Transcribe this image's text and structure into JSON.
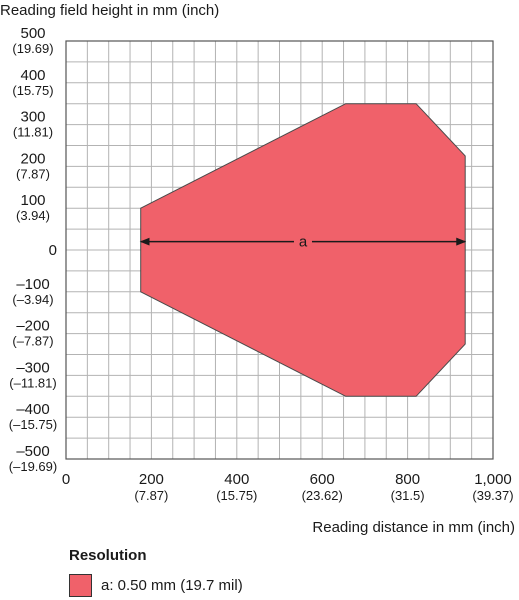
{
  "colors": {
    "region_fill": "#f0616a",
    "region_stroke": "#4a4a4a",
    "grid": "#b3b3b3",
    "axis": "#555555"
  },
  "chart_data": {
    "type": "area",
    "ylabel": "Reading field height in mm (inch)",
    "xlabel": "Reading distance in mm (inch)",
    "xlim": [
      0,
      1000
    ],
    "ylim": [
      -500,
      500
    ],
    "x_ticks": [
      {
        "value": 0,
        "label": "0",
        "sub": ""
      },
      {
        "value": 200,
        "label": "200",
        "sub": "(7.87)"
      },
      {
        "value": 400,
        "label": "400",
        "sub": "(15.75)"
      },
      {
        "value": 600,
        "label": "600",
        "sub": "(23.62)"
      },
      {
        "value": 800,
        "label": "800",
        "sub": "(31.5)"
      },
      {
        "value": 1000,
        "label": "1,000",
        "sub": "(39.37)"
      }
    ],
    "y_ticks": [
      {
        "value": 500,
        "label": "500",
        "sub": "(19.69)"
      },
      {
        "value": 400,
        "label": "400",
        "sub": "(15.75)"
      },
      {
        "value": 300,
        "label": "300",
        "sub": "(11.81)"
      },
      {
        "value": 200,
        "label": "200",
        "sub": "(7.87)"
      },
      {
        "value": 100,
        "label": "100",
        "sub": "(3.94)"
      },
      {
        "value": 0,
        "label": "0",
        "sub": ""
      },
      {
        "value": -100,
        "label": "–100",
        "sub": "(–3.94)"
      },
      {
        "value": -200,
        "label": "–200",
        "sub": "(–7.87)"
      },
      {
        "value": -300,
        "label": "–300",
        "sub": "(–11.81)"
      },
      {
        "value": -400,
        "label": "–400",
        "sub": "(–15.75)"
      },
      {
        "value": -500,
        "label": "–500",
        "sub": "(–19.69)"
      }
    ],
    "grid": true,
    "grid_step_x": 50,
    "grid_step_y": 50,
    "series": [
      {
        "name": "a: 0.50 mm (19.7 mil)",
        "polygon": [
          [
            175,
            100
          ],
          [
            655,
            350
          ],
          [
            820,
            350
          ],
          [
            935,
            225
          ],
          [
            935,
            -225
          ],
          [
            820,
            -350
          ],
          [
            655,
            -350
          ],
          [
            175,
            -100
          ]
        ]
      }
    ],
    "annotations": [
      {
        "label": "a",
        "type": "double-arrow",
        "x_from": 175,
        "x_to": 935,
        "y": 20
      }
    ],
    "legend": {
      "title": "Resolution",
      "position": "bottom-left"
    }
  }
}
